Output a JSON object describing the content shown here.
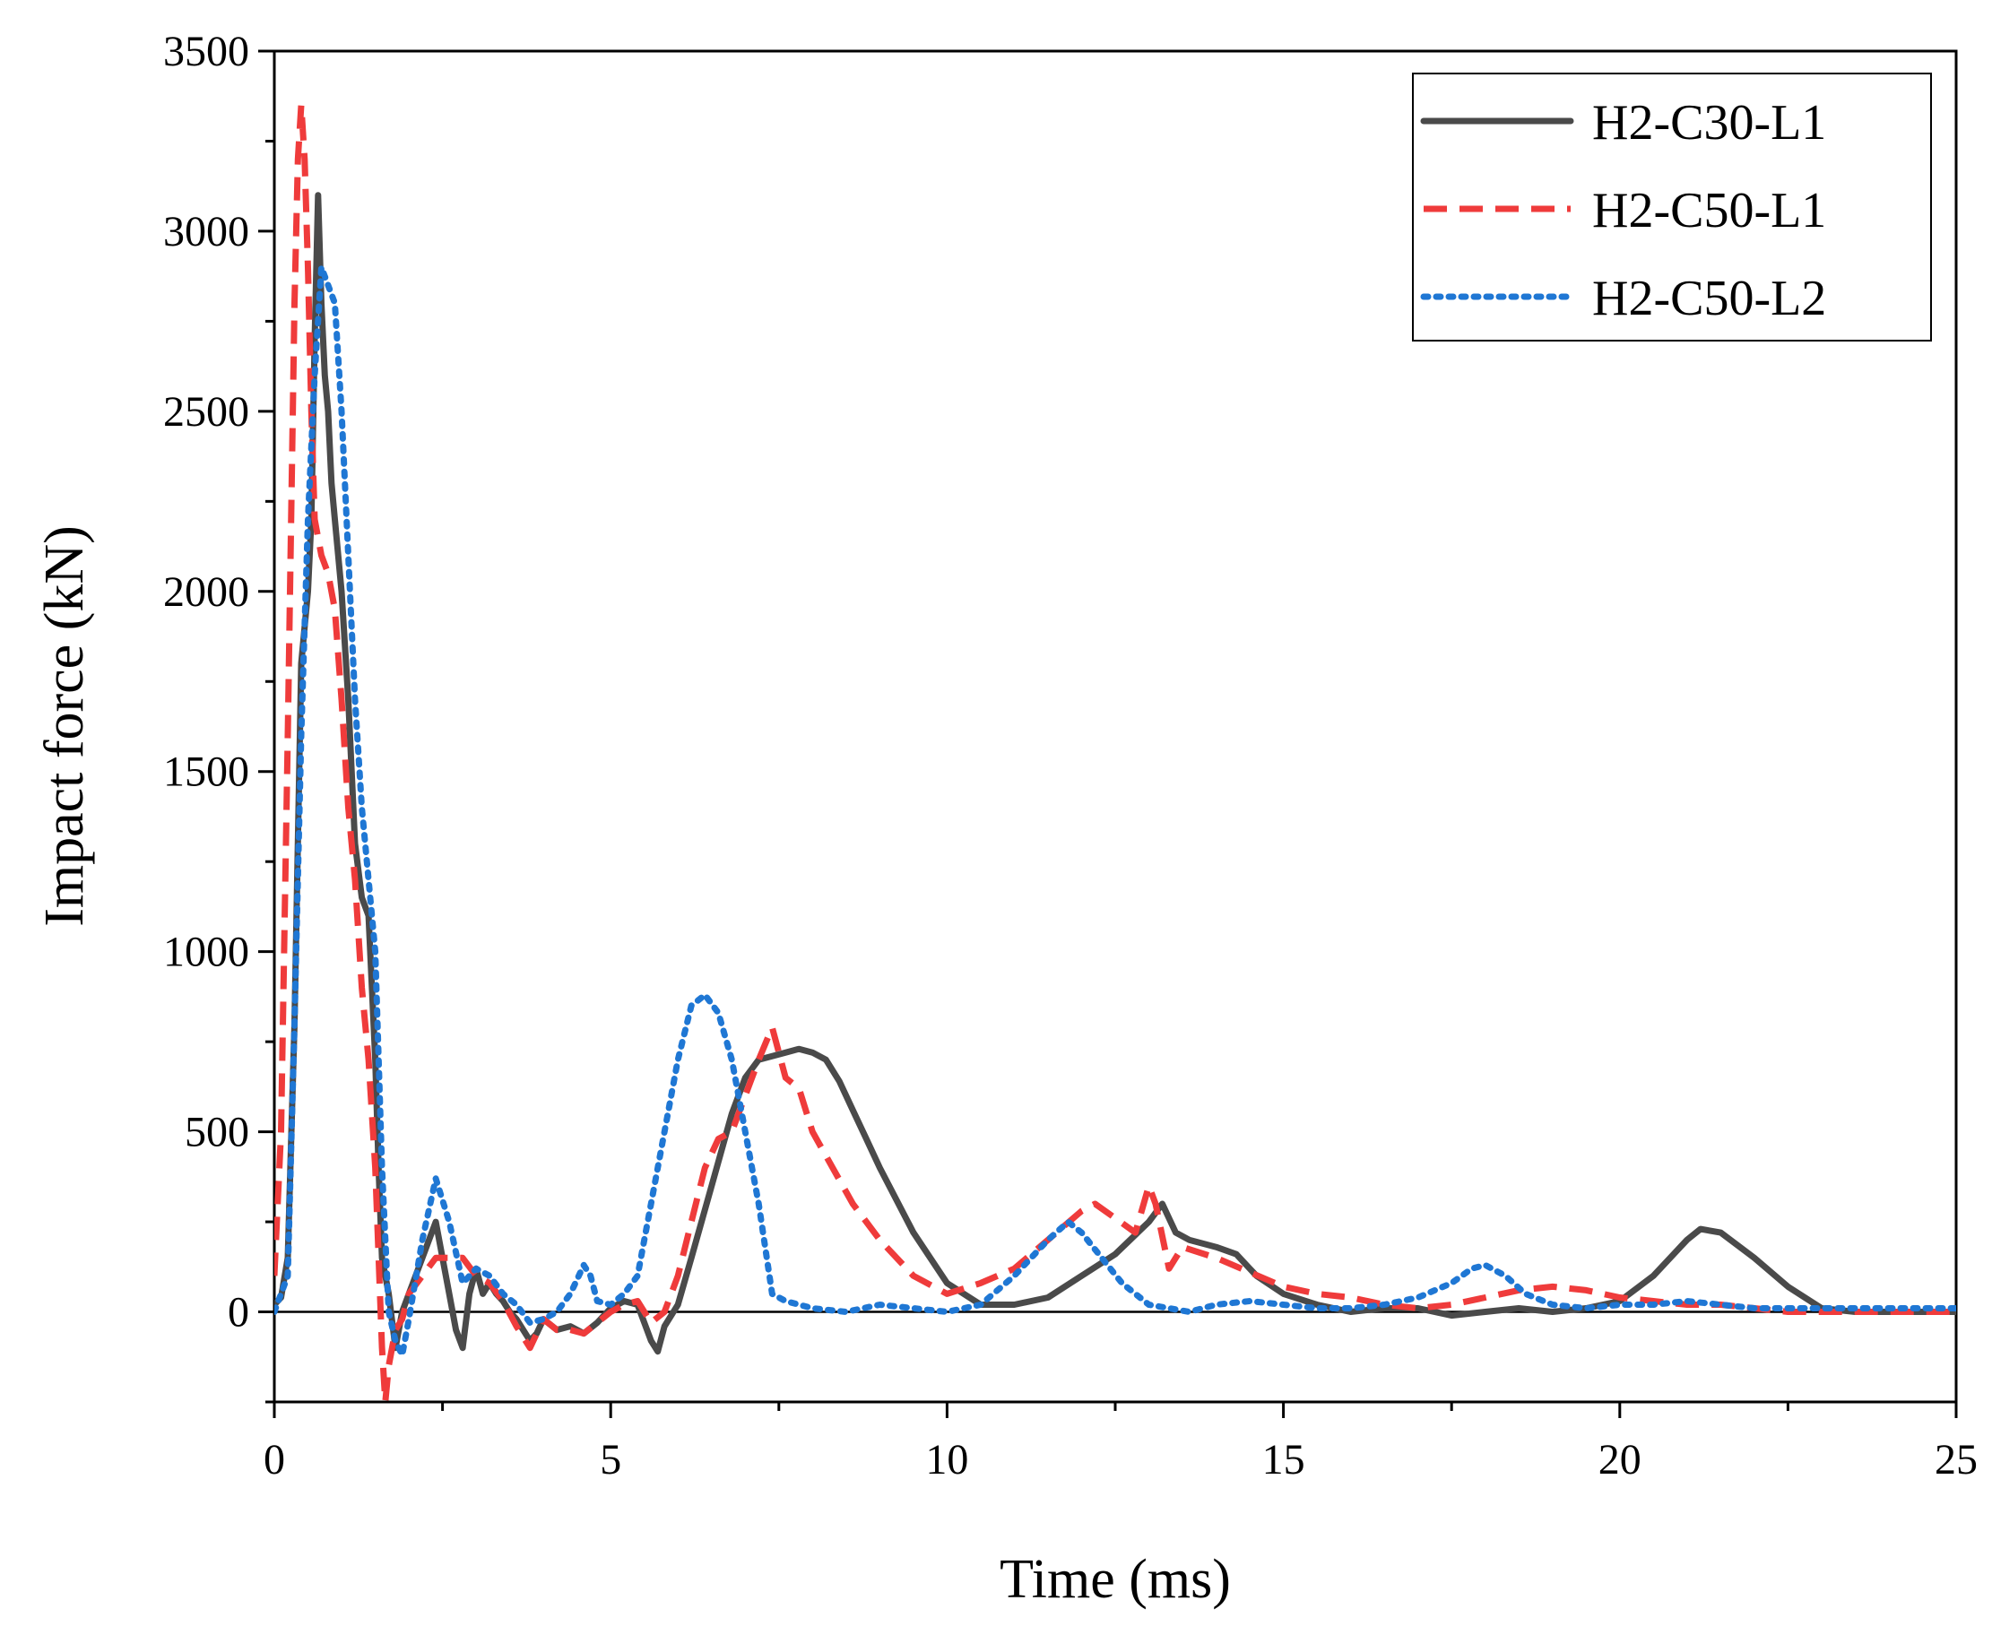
{
  "chart_data": {
    "type": "line",
    "title": "",
    "xlabel": "Time (ms)",
    "ylabel": "Impact force (kN)",
    "xlim": [
      0,
      25
    ],
    "ylim": [
      -250,
      3500
    ],
    "xticks": [
      0,
      5,
      10,
      15,
      20,
      25
    ],
    "yticks": [
      0,
      500,
      1000,
      1500,
      2000,
      2500,
      3000,
      3500
    ],
    "grid": false,
    "zero_line": true,
    "legend_position": "top-right",
    "series": [
      {
        "name": "H2-C30-L1",
        "color": "#4a4a4a",
        "dash": "solid",
        "x": [
          0,
          0.1,
          0.2,
          0.3,
          0.4,
          0.5,
          0.55,
          0.6,
          0.65,
          0.7,
          0.75,
          0.8,
          0.85,
          0.9,
          1.0,
          1.1,
          1.2,
          1.3,
          1.4,
          1.5,
          1.55,
          1.6,
          1.7,
          1.8,
          1.9,
          2.0,
          2.1,
          2.2,
          2.3,
          2.4,
          2.5,
          2.6,
          2.7,
          2.8,
          2.9,
          3.0,
          3.1,
          3.2,
          3.3,
          3.4,
          3.5,
          3.6,
          3.7,
          3.8,
          3.9,
          4.0,
          4.2,
          4.4,
          4.6,
          4.8,
          5.0,
          5.2,
          5.4,
          5.6,
          5.7,
          5.8,
          6.0,
          6.2,
          6.5,
          6.8,
          7.0,
          7.2,
          7.4,
          7.6,
          7.8,
          8.0,
          8.2,
          8.4,
          8.6,
          8.8,
          9.0,
          9.5,
          10.0,
          10.5,
          11.0,
          11.5,
          12.0,
          12.5,
          13.0,
          13.2,
          13.4,
          13.6,
          13.8,
          14.0,
          14.3,
          14.6,
          15.0,
          15.5,
          16.0,
          16.5,
          17.0,
          17.5,
          18.0,
          18.5,
          19.0,
          19.5,
          20.0,
          20.5,
          21.0,
          21.2,
          21.5,
          22.0,
          22.5,
          23.0,
          23.5,
          24.0,
          24.5,
          25.0
        ],
        "y": [
          20,
          40,
          150,
          800,
          1800,
          2000,
          2200,
          2700,
          3100,
          2800,
          2600,
          2500,
          2300,
          2200,
          2000,
          1700,
          1300,
          1150,
          1100,
          700,
          400,
          150,
          50,
          -100,
          0,
          50,
          100,
          150,
          200,
          250,
          150,
          50,
          -50,
          -100,
          50,
          120,
          50,
          80,
          50,
          30,
          0,
          -20,
          -50,
          -80,
          -60,
          -20,
          -50,
          -40,
          -60,
          -30,
          10,
          30,
          20,
          -80,
          -110,
          -40,
          20,
          150,
          350,
          550,
          650,
          700,
          710,
          720,
          730,
          720,
          700,
          640,
          560,
          480,
          400,
          220,
          80,
          20,
          20,
          40,
          100,
          160,
          250,
          300,
          220,
          200,
          190,
          180,
          160,
          100,
          50,
          20,
          0,
          10,
          10,
          -10,
          0,
          10,
          0,
          10,
          30,
          100,
          200,
          230,
          220,
          150,
          70,
          10,
          0,
          0,
          0,
          0
        ]
      },
      {
        "name": "H2-C50-L1",
        "color": "#ef3b3b",
        "dash": "dashed",
        "x": [
          0,
          0.1,
          0.2,
          0.3,
          0.35,
          0.4,
          0.45,
          0.5,
          0.55,
          0.6,
          0.7,
          0.8,
          0.9,
          1.0,
          1.1,
          1.2,
          1.3,
          1.4,
          1.5,
          1.6,
          1.65,
          1.7,
          1.8,
          1.9,
          2.0,
          2.2,
          2.4,
          2.6,
          2.8,
          3.0,
          3.2,
          3.4,
          3.6,
          3.8,
          4.0,
          4.2,
          4.4,
          4.6,
          4.8,
          5.0,
          5.2,
          5.4,
          5.6,
          5.8,
          6.0,
          6.2,
          6.4,
          6.6,
          6.8,
          7.0,
          7.2,
          7.4,
          7.6,
          7.8,
          8.0,
          8.3,
          8.6,
          9.0,
          9.5,
          10.0,
          10.5,
          11.0,
          11.5,
          12.0,
          12.2,
          12.5,
          12.8,
          13.0,
          13.1,
          13.3,
          13.5,
          14.0,
          14.5,
          15.0,
          15.5,
          16.0,
          16.5,
          17.0,
          17.5,
          18.0,
          18.5,
          19.0,
          19.5,
          20.0,
          20.5,
          21.0,
          21.5,
          22.0,
          22.5,
          23.0,
          23.5,
          24.0,
          24.5,
          25.0
        ],
        "y": [
          100,
          500,
          1600,
          2800,
          3200,
          3350,
          3200,
          2900,
          2500,
          2200,
          2100,
          2050,
          1950,
          1700,
          1400,
          1200,
          900,
          700,
          400,
          -100,
          -250,
          -150,
          -50,
          -20,
          50,
          100,
          150,
          150,
          150,
          100,
          80,
          30,
          -40,
          -100,
          -20,
          -50,
          -50,
          -60,
          -30,
          0,
          20,
          30,
          -30,
          0,
          100,
          250,
          400,
          480,
          500,
          600,
          700,
          790,
          650,
          620,
          500,
          400,
          300,
          200,
          100,
          50,
          80,
          120,
          200,
          280,
          300,
          260,
          220,
          350,
          300,
          120,
          180,
          150,
          110,
          70,
          50,
          40,
          20,
          10,
          20,
          40,
          60,
          70,
          60,
          40,
          30,
          20,
          20,
          10,
          0,
          0,
          0,
          0,
          0,
          0
        ]
      },
      {
        "name": "H2-C50-L2",
        "color": "#1f77d4",
        "dash": "dotted",
        "x": [
          0,
          0.2,
          0.3,
          0.4,
          0.5,
          0.6,
          0.7,
          0.8,
          0.9,
          1.0,
          1.1,
          1.2,
          1.3,
          1.4,
          1.5,
          1.6,
          1.7,
          1.8,
          1.9,
          2.0,
          2.2,
          2.4,
          2.6,
          2.8,
          3.0,
          3.2,
          3.4,
          3.6,
          3.8,
          4.0,
          4.2,
          4.4,
          4.6,
          4.7,
          4.8,
          5.0,
          5.2,
          5.4,
          5.6,
          5.8,
          6.0,
          6.2,
          6.4,
          6.6,
          6.8,
          7.0,
          7.2,
          7.4,
          7.6,
          7.8,
          8.0,
          8.5,
          9.0,
          9.5,
          10.0,
          10.5,
          11.0,
          11.5,
          11.8,
          12.0,
          12.3,
          12.6,
          13.0,
          13.3,
          13.6,
          14.0,
          14.5,
          15.0,
          15.5,
          16.0,
          16.5,
          17.0,
          17.5,
          17.8,
          18.0,
          18.3,
          18.6,
          19.0,
          19.5,
          20.0,
          20.5,
          21.0,
          21.5,
          22.0,
          22.5,
          23.0,
          23.5,
          24.0,
          24.5,
          25.0
        ],
        "y": [
          0,
          100,
          800,
          1600,
          2200,
          2600,
          2900,
          2850,
          2800,
          2500,
          2100,
          1700,
          1400,
          1200,
          1000,
          400,
          0,
          -80,
          -120,
          -20,
          200,
          370,
          250,
          80,
          120,
          100,
          50,
          20,
          -30,
          -20,
          0,
          50,
          130,
          100,
          30,
          20,
          50,
          100,
          300,
          500,
          700,
          850,
          880,
          830,
          700,
          500,
          300,
          50,
          30,
          20,
          10,
          0,
          20,
          10,
          0,
          20,
          100,
          200,
          250,
          220,
          150,
          80,
          20,
          10,
          0,
          20,
          30,
          20,
          10,
          10,
          20,
          40,
          80,
          120,
          130,
          100,
          50,
          20,
          10,
          20,
          20,
          30,
          20,
          10,
          10,
          10,
          10,
          10,
          10,
          10
        ]
      }
    ]
  }
}
